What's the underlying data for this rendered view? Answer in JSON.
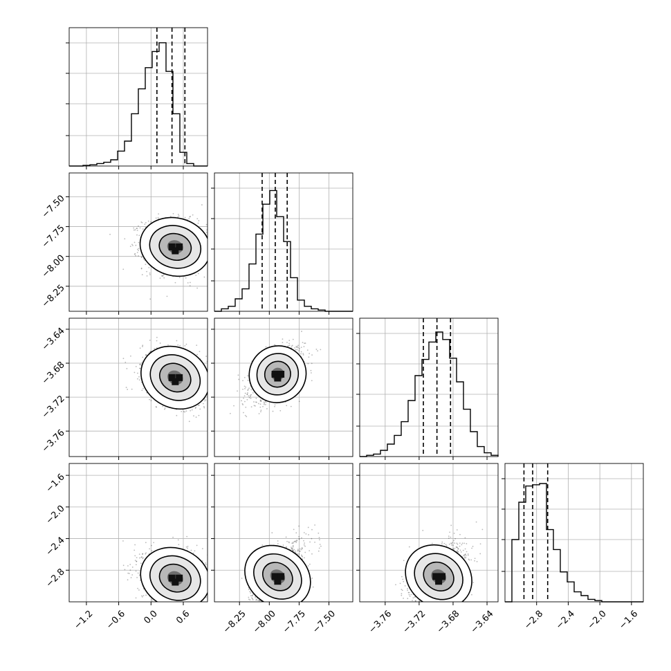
{
  "chart_data": {
    "type": "corner",
    "params": 4,
    "grid": true,
    "colors": {
      "ink": "#000000",
      "grid": "#b0b0b0",
      "sample": "#000000"
    },
    "ranges": [
      [
        -1.52,
        1.05
      ],
      [
        -8.46,
        -7.3
      ],
      [
        -3.79,
        -3.627
      ],
      [
        -3.2,
        -1.45
      ]
    ],
    "ticks": [
      {
        "values": [
          -1.2,
          -0.6,
          0.0,
          0.6
        ],
        "labels": [
          "−1.2",
          "−0.6",
          "0.0",
          "0.6"
        ]
      },
      {
        "values": [
          -8.25,
          -8.0,
          -7.75,
          -7.5
        ],
        "labels": [
          "−8.25",
          "−8.00",
          "−7.75",
          "−7.50"
        ]
      },
      {
        "values": [
          -3.76,
          -3.72,
          -3.68,
          -3.64
        ],
        "labels": [
          "−3.76",
          "−3.72",
          "−3.68",
          "−3.64"
        ]
      },
      {
        "values": [
          -2.8,
          -2.4,
          -2.0,
          -1.6
        ],
        "labels": [
          "−2.8",
          "−2.4",
          "−2.0",
          "−1.6"
        ]
      }
    ],
    "histograms": [
      {
        "bin_values": [
          0.0,
          0.0,
          0.005,
          0.01,
          0.02,
          0.03,
          0.05,
          0.12,
          0.2,
          0.42,
          0.62,
          0.79,
          0.92,
          0.99,
          0.76,
          0.42,
          0.11,
          0.02,
          0.0,
          0.0
        ],
        "quantiles": [
          0.11,
          0.39,
          0.63
        ]
      },
      {
        "bin_values": [
          0.0,
          0.02,
          0.04,
          0.1,
          0.18,
          0.38,
          0.62,
          0.86,
          0.97,
          0.76,
          0.56,
          0.27,
          0.09,
          0.04,
          0.02,
          0.01,
          0.0,
          0.0,
          0.0,
          0.0
        ],
        "quantiles": [
          -8.06,
          -7.95,
          -7.85
        ]
      },
      {
        "bin_values": [
          0.0,
          0.01,
          0.02,
          0.05,
          0.1,
          0.17,
          0.28,
          0.45,
          0.65,
          0.78,
          0.92,
          1.0,
          0.94,
          0.79,
          0.6,
          0.38,
          0.2,
          0.08,
          0.03,
          0.01
        ],
        "quantiles": [
          -3.715,
          -3.699,
          -3.683
        ]
      },
      {
        "bin_values": [
          0.0,
          0.5,
          0.8,
          0.93,
          0.94,
          0.95,
          0.58,
          0.42,
          0.24,
          0.16,
          0.08,
          0.05,
          0.02,
          0.01,
          0.0,
          0.0,
          0.0,
          0.0,
          0.0,
          0.0
        ],
        "quantiles": [
          -2.96,
          -2.85,
          -2.66
        ]
      }
    ],
    "pairs": [
      {
        "row": 1,
        "col": 0,
        "center": [
          0.45,
          -7.92
        ],
        "sigma": [
          0.3,
          0.11
        ],
        "rho": -0.12
      },
      {
        "row": 2,
        "col": 0,
        "center": [
          0.45,
          -3.697
        ],
        "sigma": [
          0.3,
          0.016
        ],
        "rho": -0.3
      },
      {
        "row": 2,
        "col": 1,
        "center": [
          -7.93,
          -3.693
        ],
        "sigma": [
          0.11,
          0.015
        ],
        "rho": 0.5
      },
      {
        "row": 3,
        "col": 0,
        "center": [
          0.45,
          -2.9
        ],
        "sigma": [
          0.3,
          0.17
        ],
        "rho": -0.2
      },
      {
        "row": 3,
        "col": 1,
        "center": [
          -7.93,
          -2.88
        ],
        "sigma": [
          0.11,
          0.2
        ],
        "rho": 0.6
      },
      {
        "row": 3,
        "col": 2,
        "center": [
          -3.697,
          -2.88
        ],
        "sigma": [
          0.016,
          0.2
        ],
        "rho": 0.45
      }
    ]
  }
}
